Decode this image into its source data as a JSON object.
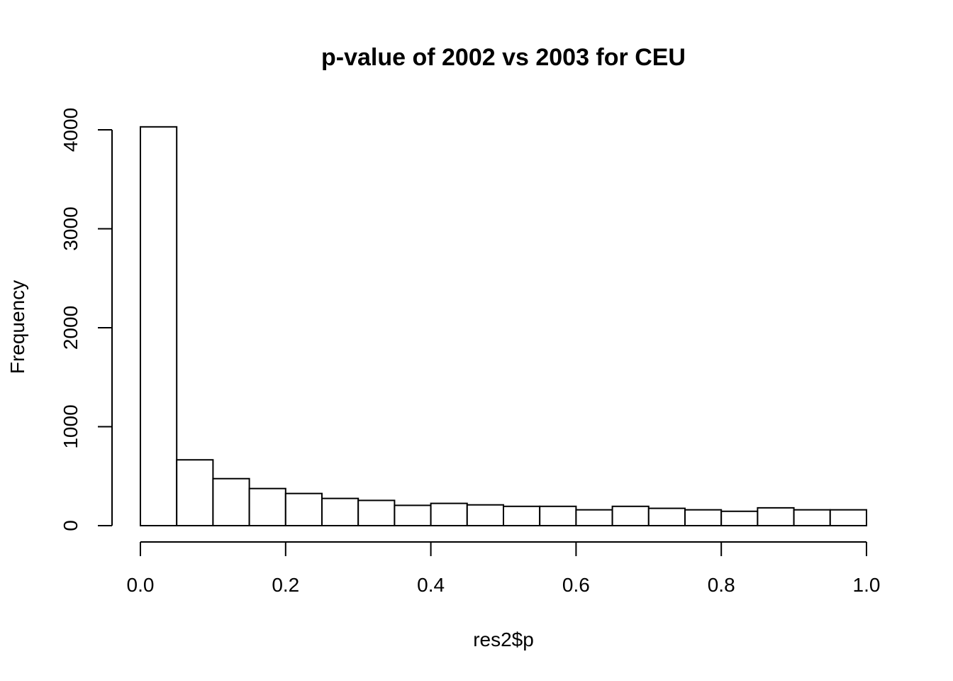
{
  "chart_data": {
    "type": "bar",
    "title": "p-value of 2002 vs 2003 for CEU",
    "xlabel": "res2$p",
    "ylabel": "Frequency",
    "bin_edges": [
      0.0,
      0.05,
      0.1,
      0.15,
      0.2,
      0.25,
      0.3,
      0.35,
      0.4,
      0.45,
      0.5,
      0.55,
      0.6,
      0.65,
      0.7,
      0.75,
      0.8,
      0.85,
      0.9,
      0.95,
      1.0
    ],
    "values": [
      4030,
      665,
      475,
      375,
      325,
      275,
      255,
      205,
      225,
      210,
      195,
      195,
      160,
      195,
      175,
      160,
      145,
      180,
      160,
      160
    ],
    "xlim": [
      0,
      1
    ],
    "ylim": [
      0,
      4000
    ],
    "x_ticks": [
      0.0,
      0.2,
      0.4,
      0.6,
      0.8,
      1.0
    ],
    "x_tick_labels": [
      "0.0",
      "0.2",
      "0.4",
      "0.6",
      "0.8",
      "1.0"
    ],
    "y_ticks": [
      0,
      1000,
      2000,
      3000,
      4000
    ],
    "y_tick_labels": [
      "0",
      "1000",
      "2000",
      "3000",
      "4000"
    ],
    "grid": false,
    "legend": "none"
  }
}
